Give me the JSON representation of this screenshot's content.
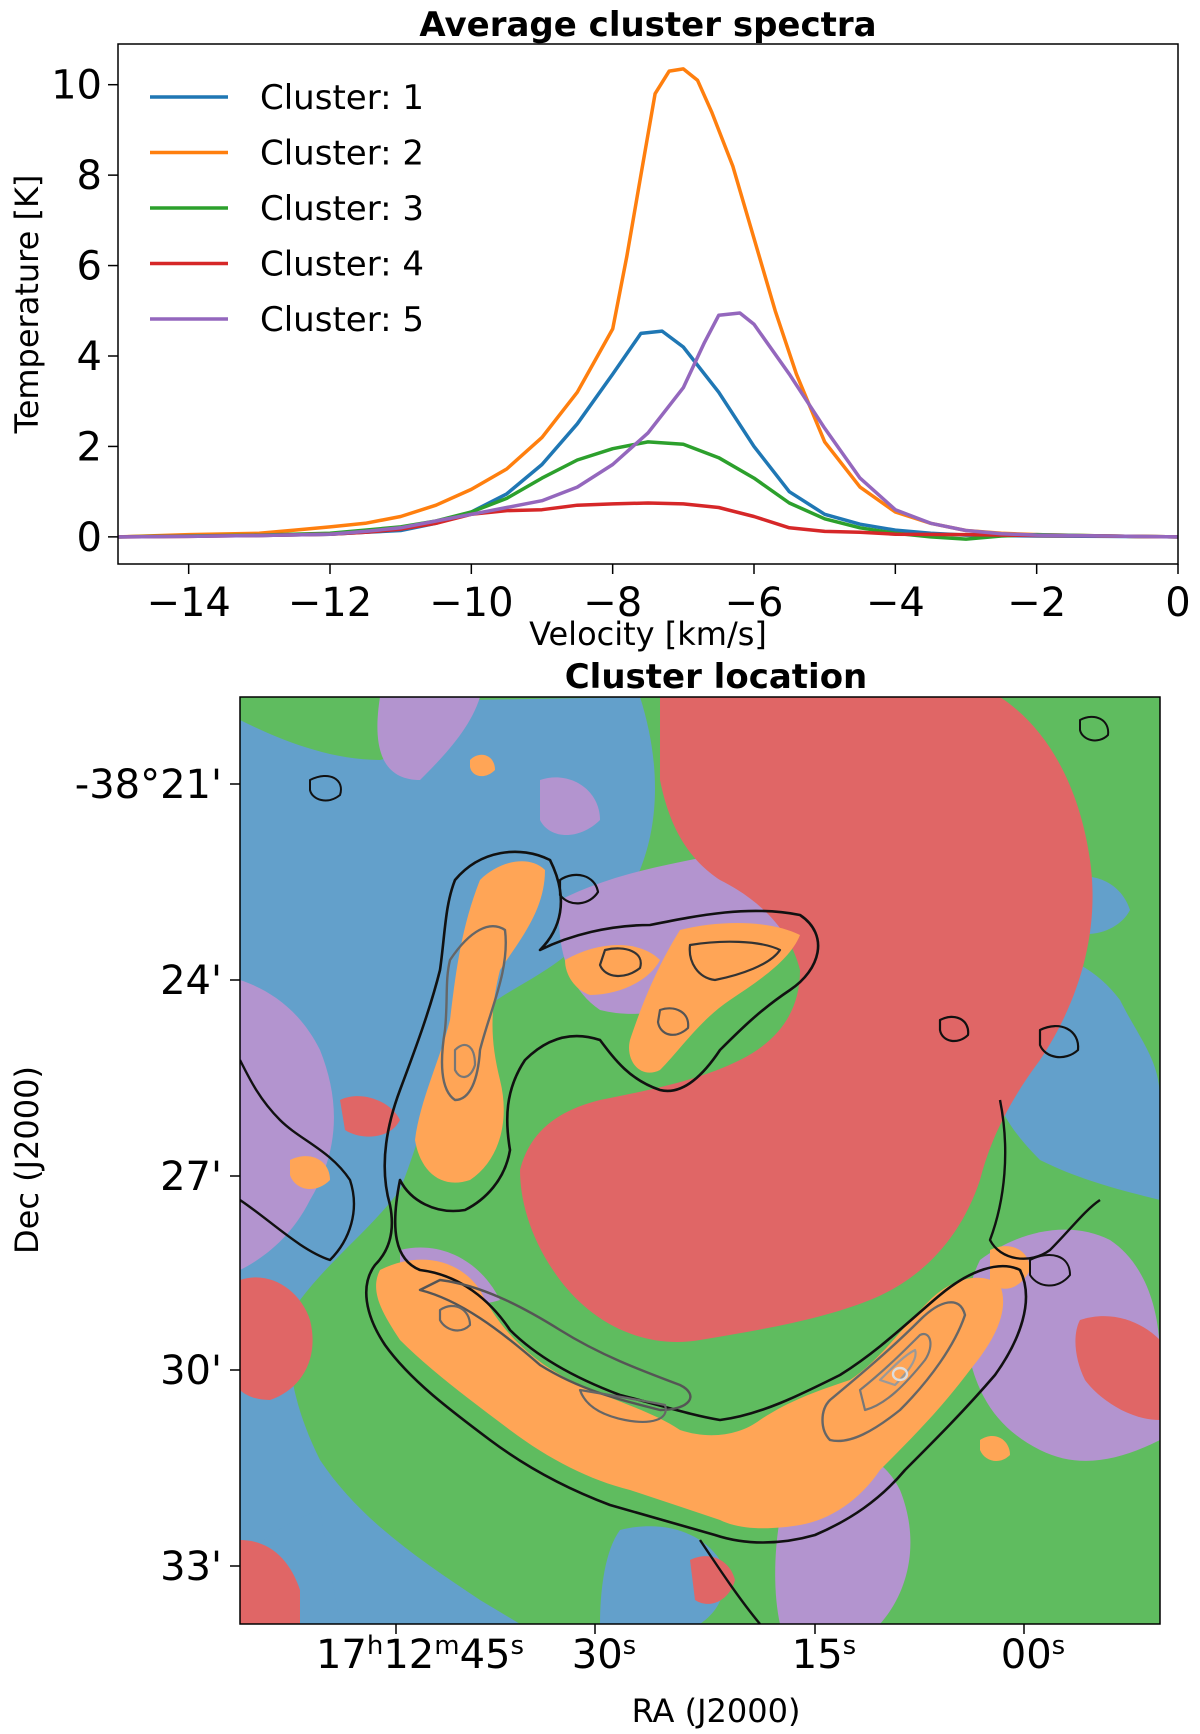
{
  "chart_data": [
    {
      "type": "line",
      "title": "Average cluster spectra",
      "xlabel": "Velocity [km/s]",
      "ylabel": "Temperature [K]",
      "xlim": [
        -15,
        0
      ],
      "ylim": [
        -0.6,
        10.9
      ],
      "xticks": [
        -14,
        -12,
        -10,
        -8,
        -6,
        -4,
        -2,
        0
      ],
      "xtick_labels": [
        "−14",
        "−12",
        "−10",
        "−8",
        "−6",
        "−4",
        "−2",
        "0"
      ],
      "yticks": [
        0,
        2,
        4,
        6,
        8,
        10
      ],
      "ytick_labels": [
        "0",
        "2",
        "4",
        "6",
        "8",
        "10"
      ],
      "legend_position": "top-left",
      "grid": false,
      "series": [
        {
          "name": "Cluster: 1",
          "color": "#1f77b4",
          "points": [
            [
              -15,
              0
            ],
            [
              -14,
              0.02
            ],
            [
              -13,
              0.03
            ],
            [
              -12,
              0.06
            ],
            [
              -11.5,
              0.1
            ],
            [
              -11,
              0.14
            ],
            [
              -10.5,
              0.3
            ],
            [
              -10,
              0.55
            ],
            [
              -9.5,
              0.95
            ],
            [
              -9,
              1.6
            ],
            [
              -8.5,
              2.5
            ],
            [
              -8,
              3.6
            ],
            [
              -7.6,
              4.5
            ],
            [
              -7.3,
              4.55
            ],
            [
              -7,
              4.2
            ],
            [
              -6.5,
              3.2
            ],
            [
              -6,
              2
            ],
            [
              -5.5,
              1
            ],
            [
              -5,
              0.5
            ],
            [
              -4.5,
              0.28
            ],
            [
              -4,
              0.15
            ],
            [
              -3.5,
              0.08
            ],
            [
              -3,
              0.04
            ],
            [
              -2,
              0.02
            ],
            [
              -1,
              0.01
            ],
            [
              0,
              0
            ]
          ]
        },
        {
          "name": "Cluster: 2",
          "color": "#ff7f0e",
          "points": [
            [
              -15,
              0
            ],
            [
              -14,
              0.05
            ],
            [
              -13,
              0.08
            ],
            [
              -12.5,
              0.15
            ],
            [
              -12,
              0.22
            ],
            [
              -11.5,
              0.3
            ],
            [
              -11,
              0.45
            ],
            [
              -10.5,
              0.7
            ],
            [
              -10,
              1.05
            ],
            [
              -9.5,
              1.5
            ],
            [
              -9,
              2.2
            ],
            [
              -8.5,
              3.2
            ],
            [
              -8,
              4.6
            ],
            [
              -7.8,
              6.2
            ],
            [
              -7.6,
              8
            ],
            [
              -7.4,
              9.8
            ],
            [
              -7.2,
              10.3
            ],
            [
              -7,
              10.35
            ],
            [
              -6.8,
              10.1
            ],
            [
              -6.6,
              9.4
            ],
            [
              -6.3,
              8.2
            ],
            [
              -6,
              6.6
            ],
            [
              -5.7,
              5
            ],
            [
              -5.4,
              3.6
            ],
            [
              -5,
              2.1
            ],
            [
              -4.5,
              1.1
            ],
            [
              -4,
              0.55
            ],
            [
              -3.5,
              0.3
            ],
            [
              -3,
              0.14
            ],
            [
              -2.5,
              0.08
            ],
            [
              -2,
              0.05
            ],
            [
              -1,
              0.02
            ],
            [
              0,
              0
            ]
          ]
        },
        {
          "name": "Cluster: 3",
          "color": "#2ca02c",
          "points": [
            [
              -15,
              0
            ],
            [
              -14,
              0.02
            ],
            [
              -13,
              0.04
            ],
            [
              -12,
              0.08
            ],
            [
              -11.5,
              0.15
            ],
            [
              -11,
              0.22
            ],
            [
              -10.5,
              0.35
            ],
            [
              -10,
              0.55
            ],
            [
              -9.5,
              0.85
            ],
            [
              -9,
              1.3
            ],
            [
              -8.5,
              1.7
            ],
            [
              -8,
              1.95
            ],
            [
              -7.5,
              2.1
            ],
            [
              -7,
              2.05
            ],
            [
              -6.5,
              1.75
            ],
            [
              -6,
              1.3
            ],
            [
              -5.5,
              0.75
            ],
            [
              -5,
              0.4
            ],
            [
              -4.5,
              0.2
            ],
            [
              -4,
              0.08
            ],
            [
              -3.5,
              0.0
            ],
            [
              -3,
              -0.05
            ],
            [
              -2.5,
              0.02
            ],
            [
              -2,
              0.05
            ],
            [
              -1,
              0.02
            ],
            [
              0,
              0
            ]
          ]
        },
        {
          "name": "Cluster: 4",
          "color": "#d62728",
          "points": [
            [
              -15,
              0
            ],
            [
              -14,
              0.01
            ],
            [
              -13,
              0.03
            ],
            [
              -12,
              0.06
            ],
            [
              -11.5,
              0.1
            ],
            [
              -11,
              0.17
            ],
            [
              -10.5,
              0.3
            ],
            [
              -10,
              0.5
            ],
            [
              -9.5,
              0.58
            ],
            [
              -9,
              0.6
            ],
            [
              -8.5,
              0.7
            ],
            [
              -8,
              0.73
            ],
            [
              -7.5,
              0.75
            ],
            [
              -7,
              0.73
            ],
            [
              -6.5,
              0.65
            ],
            [
              -6,
              0.45
            ],
            [
              -5.5,
              0.2
            ],
            [
              -5,
              0.12
            ],
            [
              -4.5,
              0.1
            ],
            [
              -4,
              0.06
            ],
            [
              -3,
              0.05
            ],
            [
              -2,
              0.03
            ],
            [
              -1,
              0.02
            ],
            [
              0,
              0
            ]
          ]
        },
        {
          "name": "Cluster: 5",
          "color": "#9467bd",
          "points": [
            [
              -15,
              0
            ],
            [
              -14,
              0.01
            ],
            [
              -13,
              0.03
            ],
            [
              -12,
              0.06
            ],
            [
              -11.5,
              0.12
            ],
            [
              -11,
              0.2
            ],
            [
              -10.5,
              0.35
            ],
            [
              -10,
              0.5
            ],
            [
              -9.5,
              0.65
            ],
            [
              -9,
              0.8
            ],
            [
              -8.5,
              1.1
            ],
            [
              -8,
              1.6
            ],
            [
              -7.5,
              2.3
            ],
            [
              -7,
              3.3
            ],
            [
              -6.7,
              4.3
            ],
            [
              -6.5,
              4.9
            ],
            [
              -6.2,
              4.95
            ],
            [
              -6,
              4.7
            ],
            [
              -5.5,
              3.6
            ],
            [
              -5,
              2.4
            ],
            [
              -4.5,
              1.3
            ],
            [
              -4,
              0.6
            ],
            [
              -3.5,
              0.3
            ],
            [
              -3,
              0.14
            ],
            [
              -2.5,
              0.07
            ],
            [
              -2,
              0.04
            ],
            [
              -1,
              0.02
            ],
            [
              0,
              0
            ]
          ]
        }
      ]
    },
    {
      "type": "heatmap",
      "title": "Cluster location",
      "xlabel": "RA (J2000)",
      "ylabel": "Dec (J2000)",
      "xtick_labels": [
        {
          "main": "17",
          "sup1": "h",
          "mid": "12",
          "sup2": "m",
          "tail": "45",
          "sup3": "s"
        },
        {
          "main": "30",
          "sup": "s"
        },
        {
          "main": "15",
          "sup": "s"
        },
        {
          "main": "00",
          "sup": "s"
        }
      ],
      "ytick_labels": [
        "-38°21'",
        "24'",
        "27'",
        "30'",
        "33'"
      ],
      "colors": {
        "cluster1": "#63a0cb",
        "cluster2": "#ffa556",
        "cluster3": "#5fbc5f",
        "cluster4": "#e06666",
        "cluster5": "#b394cf"
      }
    }
  ]
}
